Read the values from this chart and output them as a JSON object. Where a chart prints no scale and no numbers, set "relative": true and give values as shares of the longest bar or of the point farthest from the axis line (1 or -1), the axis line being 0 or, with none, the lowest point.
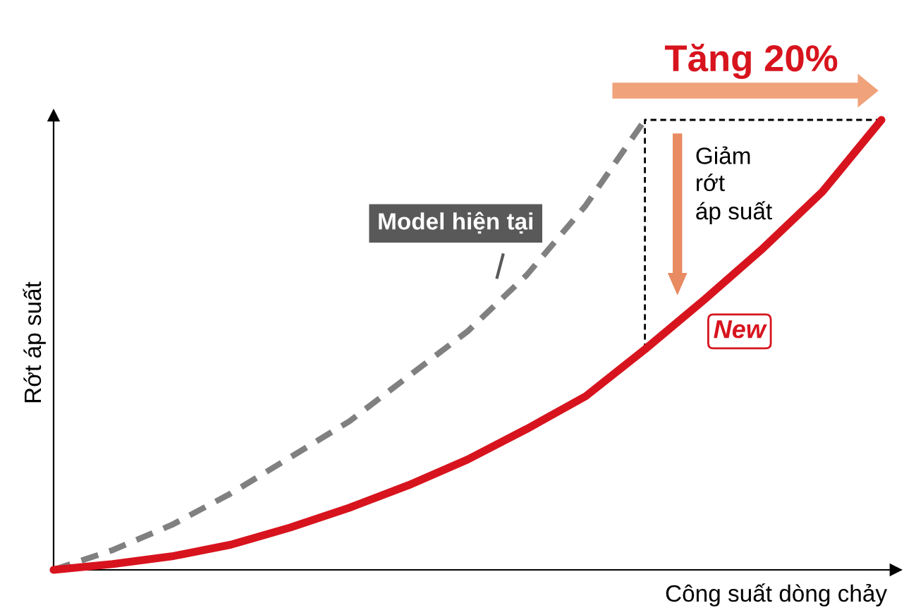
{
  "chart_data": {
    "type": "line",
    "relative": true,
    "xlabel": "Công suất dòng chảy",
    "ylabel": "Rớt áp suất",
    "categories": [
      null,
      null,
      null,
      null,
      null,
      null,
      null,
      null,
      null,
      null,
      null,
      null,
      null,
      null,
      null
    ],
    "series": [
      {
        "name": "Model hiện tại",
        "color": "#808080",
        "line_style": "dashed",
        "values": [
          0,
          0.044,
          0.1,
          0.17,
          0.25,
          0.33,
          0.43,
          0.53,
          0.655,
          0.81,
          1.0,
          null,
          null,
          null,
          null
        ]
      },
      {
        "name": "New",
        "color": "#d7141e",
        "line_style": "solid",
        "values": [
          0,
          0.013,
          0.03,
          0.056,
          0.094,
          0.138,
          0.188,
          0.245,
          0.313,
          0.386,
          0.49,
          0.6,
          0.715,
          0.84,
          1.0
        ]
      }
    ],
    "annotations": [
      "Tăng 20%",
      "Giảm\nrớt\náp suất"
    ],
    "grid": false,
    "marker": "none"
  }
}
